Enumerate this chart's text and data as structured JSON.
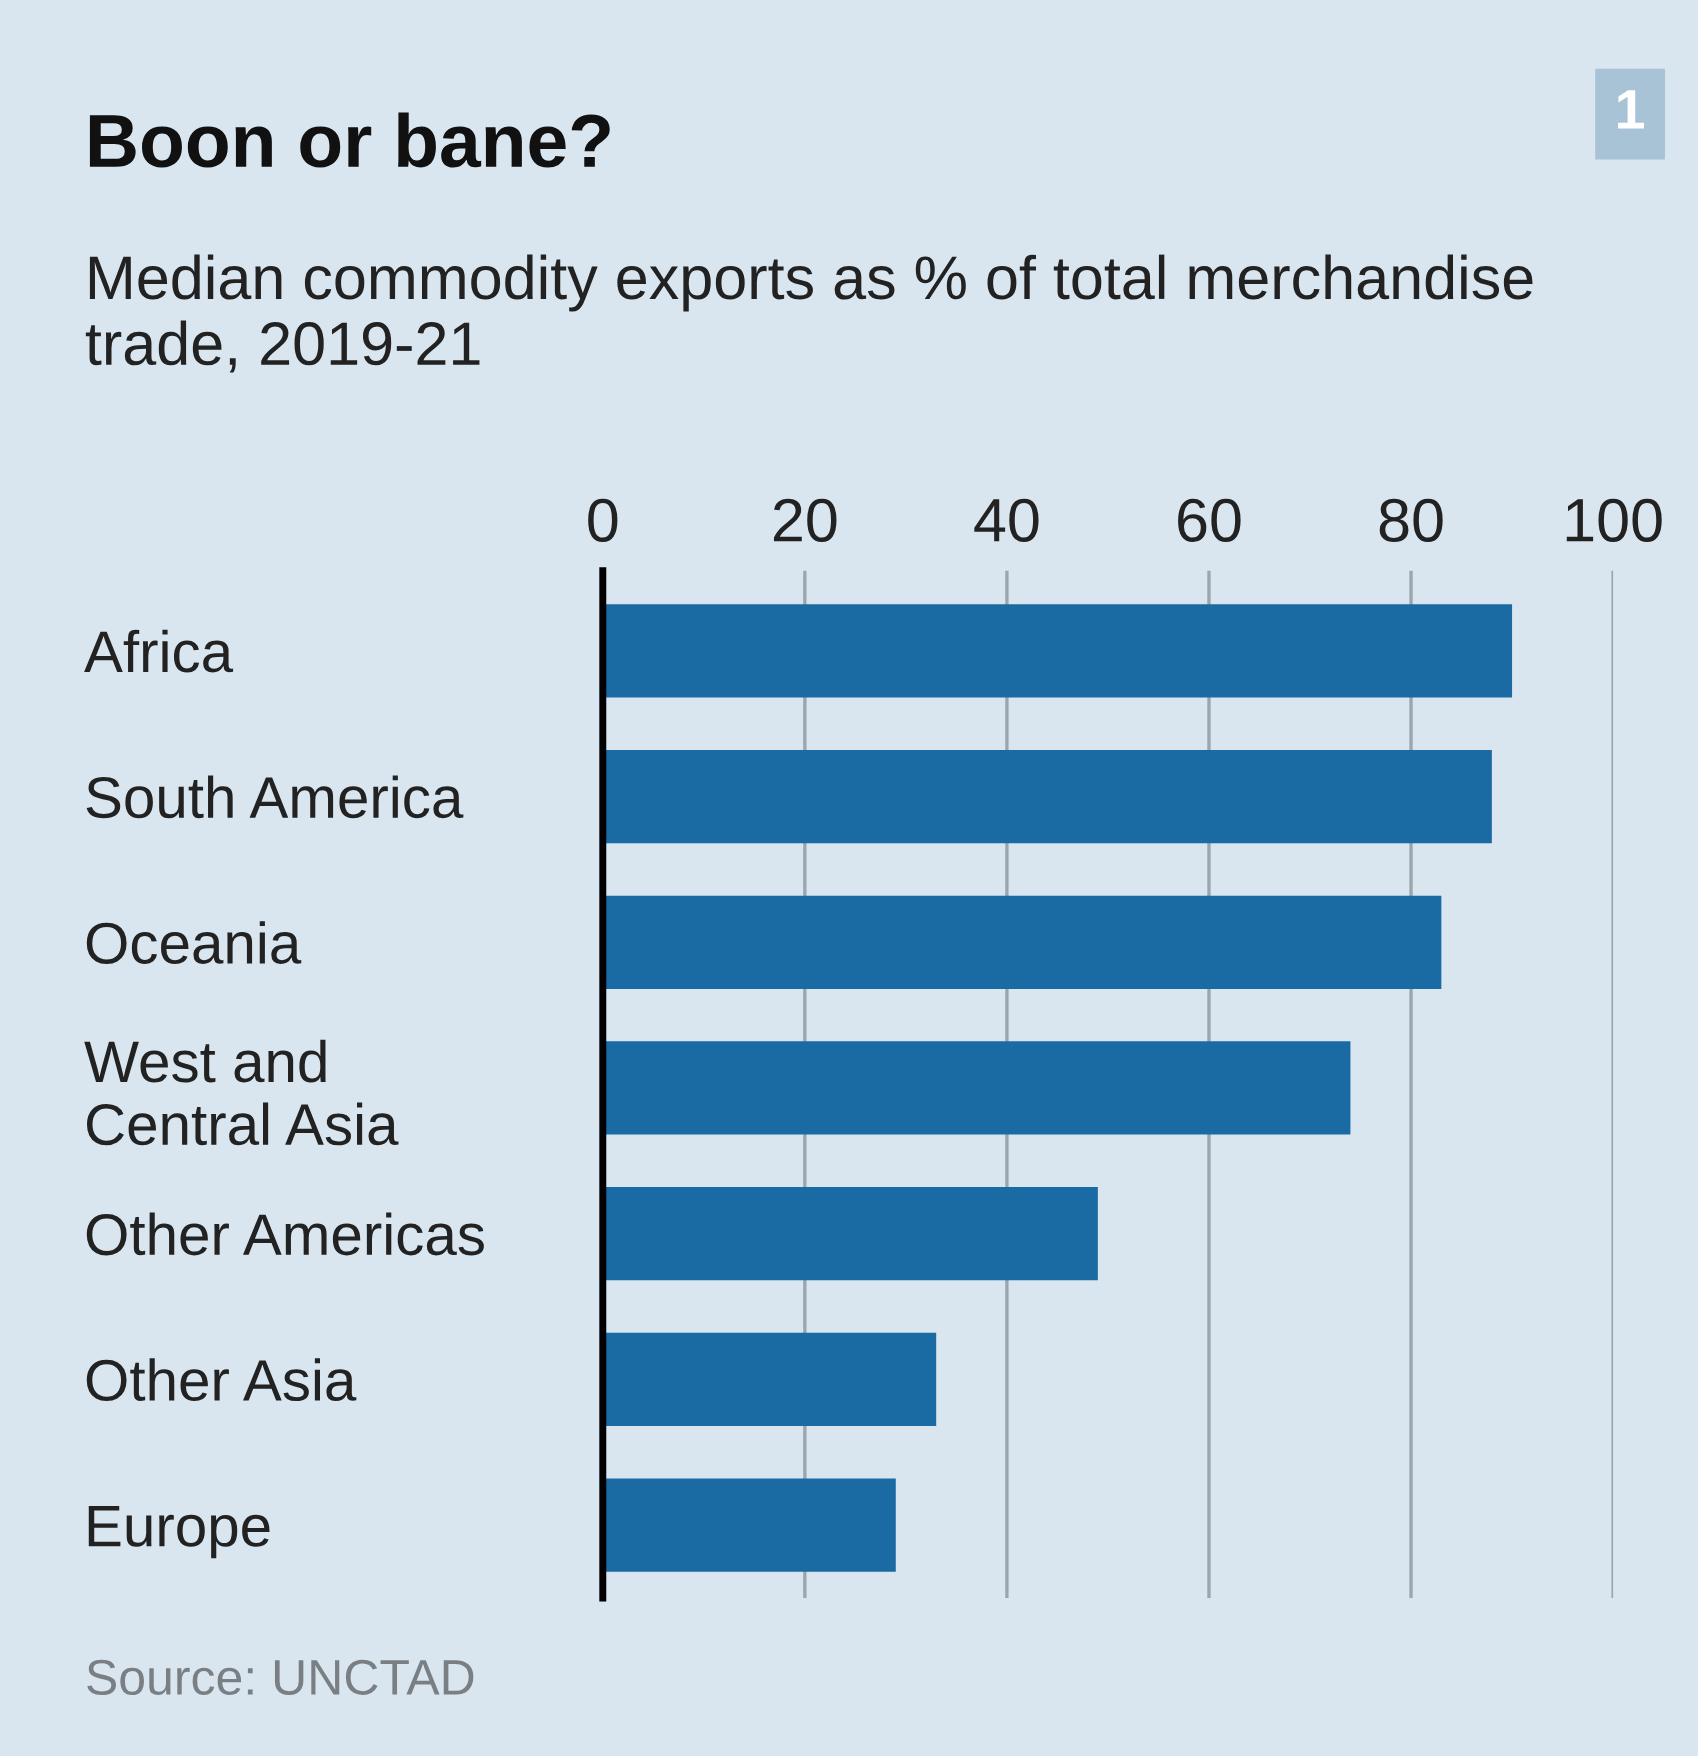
{
  "chart_data": {
    "type": "bar",
    "orientation": "horizontal",
    "title": "Boon or bane?",
    "subtitle": "Median commodity exports as % of total merchandise trade, 2019-21",
    "categories": [
      "Africa",
      "South America",
      "Oceania",
      "West and\nCentral Asia",
      "Other Americas",
      "Other Asia",
      "Europe"
    ],
    "values": [
      90,
      88,
      83,
      74,
      49,
      33,
      29
    ],
    "color": "#1a6aa3",
    "xlim": [
      0,
      100
    ],
    "xticks": [
      0,
      20,
      40,
      60,
      80,
      100
    ],
    "grid": "x",
    "annotations": [
      "1",
      "Source: UNCTAD"
    ]
  }
}
